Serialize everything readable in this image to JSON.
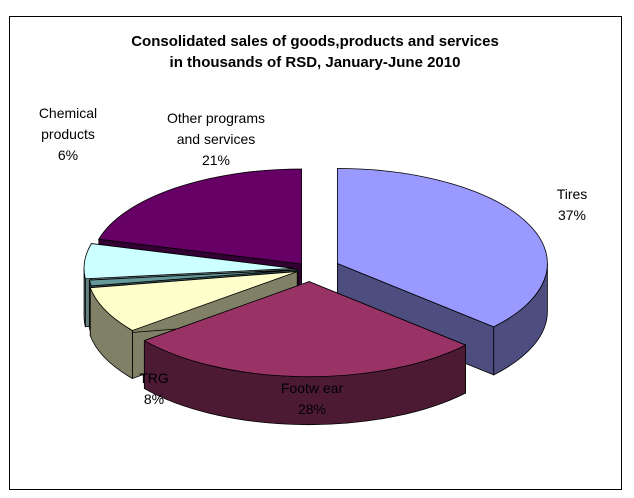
{
  "chart_data": {
    "type": "pie",
    "style": "3d-exploded",
    "title_lines": [
      "Consolidated sales of goods,products and services",
      "in thousands of RSD, January-June 2010"
    ],
    "slices": [
      {
        "label_lines": [
          "Tires",
          "37%"
        ],
        "name": "Tires",
        "value": 37,
        "color": "#9999ff",
        "side_color": "#4d4d80"
      },
      {
        "label_lines": [
          "Footw ear",
          "28%"
        ],
        "name": "Footw ear",
        "value": 28,
        "color": "#993366",
        "side_color": "#4d1a33"
      },
      {
        "label_lines": [
          "TRG",
          "8%"
        ],
        "name": "TRG",
        "value": 8,
        "color": "#ffffcc",
        "side_color": "#808066"
      },
      {
        "label_lines": [],
        "name": "",
        "value": 1,
        "color": "#669999",
        "side_color": "#334d4d"
      },
      {
        "label_lines": [
          "Chemical",
          "products",
          "6%"
        ],
        "name": "Chemical products",
        "value": 6,
        "color": "#ccffff",
        "side_color": "#668080"
      },
      {
        "label_lines": [
          "Other programs",
          "and services",
          "21%"
        ],
        "name": "Other programs and services",
        "value": 21,
        "color": "#660066",
        "side_color": "#330033"
      }
    ],
    "legend": "none"
  }
}
